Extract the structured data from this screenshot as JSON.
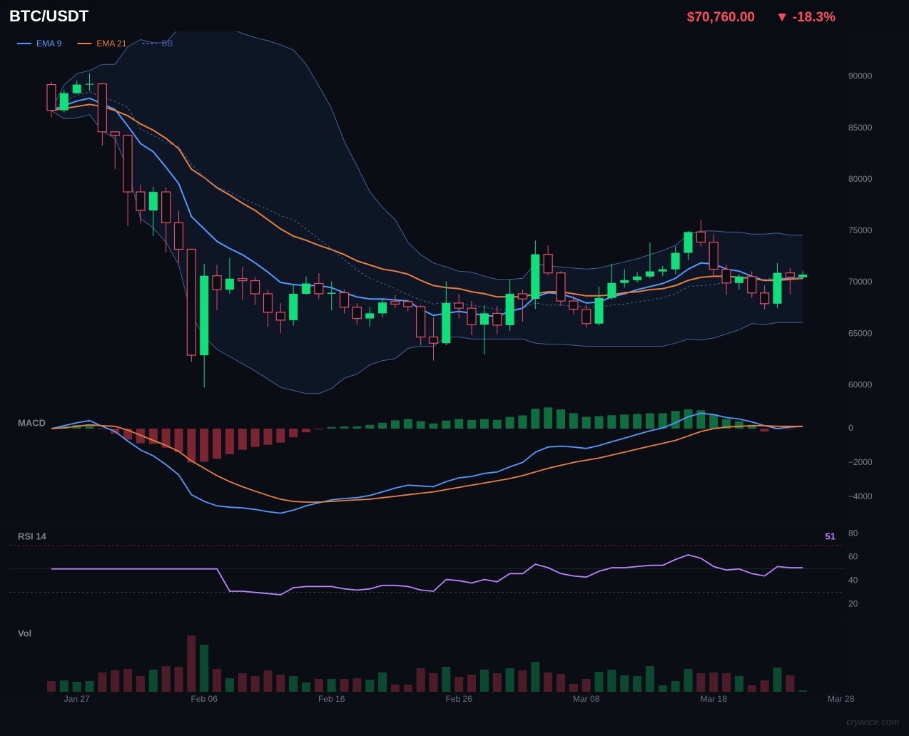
{
  "chart_data": [
    {
      "type": "candlestick",
      "title": "BTC/USDT",
      "price_label": "$70,760.00",
      "change_label": "▼ -18.3%",
      "header_color": "#ff4d5e",
      "up_color": "#0fe07a",
      "down_color": "#e8506a",
      "open": [
        89230,
        86730,
        88400,
        89230,
        89300,
        84640,
        84300,
        78800,
        77000,
        78800,
        75800,
        73230,
        62930,
        70650,
        69300,
        70370,
        70170,
        68900,
        67100,
        66340,
        68900,
        69900,
        68900,
        69000,
        67600,
        66500,
        67000,
        68150,
        68150,
        67650,
        64700,
        64100,
        68000,
        67500,
        65900,
        67000,
        65850,
        68900,
        68400,
        72740,
        70930,
        68200,
        67400,
        66000,
        68500,
        69950,
        70230,
        70580,
        71070,
        71280,
        72880,
        74900,
        73920,
        71280,
        69950,
        70580,
        68980,
        67940,
        70930,
        70510
      ],
      "high": [
        89500,
        88700,
        89600,
        90300,
        89400,
        84700,
        84400,
        79500,
        79300,
        79200,
        77000,
        73300,
        71800,
        71700,
        72400,
        71500,
        70500,
        69300,
        68000,
        69800,
        70600,
        70900,
        70100,
        69300,
        68000,
        67600,
        68400,
        68800,
        68300,
        67800,
        66600,
        70100,
        68900,
        68200,
        67800,
        67700,
        70300,
        69300,
        74100,
        73600,
        71100,
        68700,
        67800,
        69600,
        71800,
        71300,
        71000,
        73900,
        71600,
        73500,
        75000,
        76100,
        74700,
        71700,
        70800,
        71100,
        69700,
        71900,
        71400,
        71100
      ],
      "low": [
        86030,
        86500,
        88300,
        88600,
        83300,
        81000,
        75500,
        75800,
        74500,
        72900,
        71900,
        62300,
        59800,
        67300,
        68900,
        68300,
        67800,
        65700,
        65100,
        65800,
        68800,
        68400,
        67300,
        67000,
        65900,
        65700,
        66600,
        67500,
        67200,
        63900,
        62400,
        63900,
        66500,
        64900,
        63000,
        65000,
        65300,
        66200,
        67400,
        70700,
        67700,
        66900,
        65600,
        65800,
        68300,
        69500,
        70000,
        70400,
        70600,
        70800,
        72200,
        73500,
        70500,
        68800,
        69300,
        68500,
        67400,
        67500,
        68900,
        70300
      ],
      "close": [
        86730,
        88400,
        89230,
        89300,
        84640,
        84300,
        78800,
        77000,
        78800,
        75800,
        73230,
        62930,
        70650,
        69300,
        70370,
        70170,
        68900,
        67100,
        66340,
        68900,
        69900,
        68900,
        69000,
        67600,
        66500,
        67000,
        68050,
        67900,
        67650,
        64700,
        64100,
        68000,
        67500,
        65900,
        67000,
        65850,
        68900,
        68400,
        72740,
        70930,
        68200,
        67400,
        66000,
        68500,
        69950,
        70230,
        70580,
        71070,
        71280,
        72880,
        74900,
        73920,
        71280,
        69950,
        70580,
        68980,
        67940,
        70930,
        70510,
        70760
      ],
      "series": [
        {
          "name": "EMA 9",
          "color": "#4f9bff",
          "values": [
            86730,
            87200,
            87630,
            87900,
            87360,
            86800,
            85200,
            83500,
            82700,
            81200,
            79600,
            76400,
            75200,
            74000,
            73300,
            72700,
            71900,
            71000,
            70000,
            69800,
            69700,
            69700,
            69500,
            69000,
            68600,
            68400,
            68400,
            68300,
            68200,
            67400,
            66800,
            67000,
            67200,
            67000,
            66800,
            66700,
            67200,
            67500,
            68600,
            69000,
            68900,
            68500,
            68000,
            68100,
            68600,
            68900,
            69300,
            69600,
            69900,
            70400,
            71300,
            71900,
            71800,
            71300,
            71100,
            70600,
            70200,
            70300,
            70400,
            70400
          ]
        },
        {
          "name": "EMA 21",
          "color": "#e8803c",
          "values": [
            86730,
            86900,
            87100,
            87300,
            87100,
            86700,
            86200,
            85400,
            84800,
            84000,
            83000,
            81000,
            80200,
            79200,
            78500,
            77700,
            77000,
            76100,
            75200,
            74500,
            74100,
            73600,
            73200,
            72700,
            72100,
            71700,
            71300,
            71100,
            70800,
            70200,
            69700,
            69500,
            69400,
            69100,
            68900,
            68600,
            68600,
            68600,
            68900,
            69100,
            69100,
            68900,
            68700,
            68700,
            68800,
            69000,
            69100,
            69300,
            69400,
            69700,
            70200,
            70500,
            70600,
            70600,
            70500,
            70400,
            70200,
            70200,
            70300,
            70400
          ]
        },
        {
          "name": "BB",
          "color": "#3f6496",
          "fill": "#0e1626",
          "dashed": true,
          "values": [
            86800,
            87600,
            88200,
            88500,
            88000,
            87600,
            87000,
            84900,
            84300,
            83600,
            83200,
            81500,
            80200,
            79300,
            78800,
            78200,
            77600,
            77100,
            76500,
            76100,
            75200,
            74200,
            73300,
            72200,
            71200,
            70400,
            69900,
            69400,
            68800,
            68300,
            67900,
            68100,
            67900,
            67800,
            67600,
            67400,
            67400,
            67500,
            68000,
            67800,
            67800,
            67700,
            67600,
            67600,
            67800,
            67900,
            68100,
            68300,
            68500,
            68900,
            69600,
            69700,
            69800,
            70000,
            70200,
            70400,
            70300,
            70500,
            70400,
            70400
          ],
          "upper": [
            86800,
            89200,
            90300,
            90600,
            91200,
            91200,
            92900,
            93600,
            93300,
            93300,
            94700,
            96100,
            95700,
            95000,
            94700,
            94200,
            93800,
            93500,
            93100,
            92600,
            91200,
            89100,
            86900,
            83700,
            81300,
            78800,
            77300,
            76100,
            73900,
            72700,
            71900,
            71500,
            71100,
            71000,
            70600,
            70300,
            70300,
            70400,
            71900,
            71600,
            71500,
            71400,
            71300,
            71400,
            71700,
            72000,
            72300,
            72700,
            73100,
            73600,
            74700,
            75000,
            75000,
            74900,
            74900,
            74700,
            74700,
            74800,
            74600,
            74600
          ],
          "lower": [
            86700,
            85900,
            86000,
            86300,
            84700,
            84000,
            81000,
            76200,
            75300,
            73900,
            71700,
            66800,
            64700,
            63500,
            62800,
            62100,
            61400,
            60600,
            59800,
            59500,
            59200,
            59200,
            59700,
            60700,
            61100,
            62000,
            62400,
            62600,
            63600,
            63800,
            63800,
            64700,
            64700,
            64500,
            64500,
            64500,
            64500,
            64500,
            64100,
            64000,
            64000,
            63900,
            63800,
            63800,
            63800,
            63800,
            63800,
            63800,
            63800,
            64100,
            64500,
            64400,
            64600,
            65000,
            65400,
            66000,
            65900,
            66100,
            66100,
            66100
          ]
        }
      ],
      "ylim": [
        58500,
        94400
      ],
      "yticks": [
        60000,
        65000,
        70000,
        75000,
        80000,
        85000,
        90000
      ]
    },
    {
      "type": "macd",
      "title": "MACD",
      "series": [
        {
          "color": "#4f9bff",
          "values": [
            0,
            170,
            340,
            470,
            130,
            -170,
            -730,
            -1250,
            -1590,
            -2110,
            -2710,
            -3870,
            -4260,
            -4520,
            -4600,
            -4640,
            -4730,
            -4860,
            -4950,
            -4770,
            -4520,
            -4340,
            -4170,
            -4090,
            -4040,
            -3910,
            -3700,
            -3480,
            -3310,
            -3350,
            -3400,
            -3100,
            -2880,
            -2800,
            -2620,
            -2540,
            -2240,
            -1980,
            -1380,
            -1080,
            -1030,
            -1080,
            -1160,
            -990,
            -770,
            -560,
            -340,
            -130,
            40,
            340,
            690,
            900,
            820,
            650,
            560,
            390,
            170,
            0,
            90,
            130
          ]
        },
        {
          "color": "#e8803c",
          "values": [
            0,
            40,
            130,
            220,
            170,
            130,
            -90,
            -390,
            -690,
            -990,
            -1330,
            -1890,
            -2320,
            -2750,
            -3100,
            -3400,
            -3660,
            -3910,
            -4130,
            -4260,
            -4300,
            -4300,
            -4260,
            -4210,
            -4170,
            -4130,
            -4040,
            -3960,
            -3870,
            -3780,
            -3700,
            -3570,
            -3440,
            -3310,
            -3180,
            -3050,
            -2920,
            -2750,
            -2540,
            -2320,
            -2150,
            -1980,
            -1850,
            -1720,
            -1550,
            -1380,
            -1200,
            -1030,
            -860,
            -690,
            -430,
            -170,
            0,
            90,
            130,
            170,
            170,
            130,
            130,
            130
          ]
        }
      ],
      "histogram": {
        "up_color": "#0e6e40",
        "down_color": "#7c2532",
        "values": [
          0,
          130,
          210,
          250,
          -40,
          -300,
          -640,
          -860,
          -900,
          -1120,
          -1380,
          -1980,
          -1940,
          -1770,
          -1500,
          -1240,
          -1070,
          -950,
          -820,
          -510,
          -220,
          -40,
          90,
          120,
          130,
          220,
          340,
          480,
          560,
          430,
          300,
          470,
          560,
          510,
          560,
          510,
          680,
          770,
          1160,
          1240,
          1120,
          900,
          690,
          730,
          780,
          820,
          860,
          900,
          900,
          1030,
          1120,
          1070,
          820,
          560,
          430,
          220,
          -170,
          -40,
          -40,
          0
        ]
      },
      "ylim": [
        -5300,
        1500
      ],
      "yticks": [
        0,
        {
          "value": -2000,
          "label": "−2000"
        },
        {
          "value": -4000,
          "label": "−4000"
        }
      ]
    },
    {
      "type": "rsi",
      "title": "RSI 14",
      "color": "#b884ff",
      "last_value": 51,
      "values": [
        50,
        50,
        50,
        50,
        50,
        50,
        50,
        50,
        50,
        50,
        50,
        50,
        50,
        50,
        31,
        31,
        30,
        29,
        28,
        34,
        35,
        35,
        35,
        33,
        32,
        33,
        36,
        36,
        35,
        32,
        31,
        41,
        40,
        38,
        41,
        39,
        46,
        46,
        54,
        51,
        46,
        44,
        43,
        48,
        51,
        51,
        52,
        53,
        53,
        58,
        62,
        59,
        52,
        49,
        50,
        46,
        44,
        52,
        51,
        51
      ],
      "levels": [
        70,
        50,
        30
      ],
      "level_colors": [
        "#5c2535",
        "#1e2532",
        "#1f4d3c"
      ],
      "ylim": [
        11,
        88
      ],
      "yticks": [
        20,
        40,
        60,
        80
      ]
    },
    {
      "type": "volume",
      "title": "Vol",
      "up_color": "#0b4a31",
      "down_color": "#4c1d28",
      "categories": [
        null,
        null,
        "Jan 27",
        null,
        null,
        null,
        null,
        null,
        null,
        null,
        null,
        null,
        "Feb 06",
        null,
        null,
        null,
        null,
        null,
        null,
        null,
        null,
        null,
        "Feb 16",
        null,
        null,
        null,
        null,
        null,
        null,
        null,
        null,
        null,
        "Feb 26",
        null,
        null,
        null,
        null,
        null,
        null,
        null,
        null,
        null,
        "Mar 08",
        null,
        null,
        null,
        null,
        null,
        null,
        null,
        null,
        null,
        "Mar 18",
        null,
        null,
        null,
        null,
        null,
        null,
        null,
        null,
        null,
        "Mar 28"
      ],
      "values": [
        15,
        16,
        14,
        15,
        27,
        30,
        32,
        22,
        31,
        36,
        35,
        79,
        66,
        32,
        19,
        26,
        22,
        30,
        24,
        22,
        13,
        18,
        18,
        18,
        19,
        17,
        27,
        10,
        10,
        33,
        26,
        35,
        21,
        24,
        31,
        26,
        33,
        30,
        42,
        27,
        25,
        11,
        18,
        28,
        31,
        23,
        22,
        36,
        9,
        15,
        32,
        26,
        27,
        26,
        22,
        9,
        16,
        34,
        23,
        2,
        null,
        null,
        null
      ]
    },
    {
      "type": "watermark",
      "title": "cryance.com"
    }
  ]
}
